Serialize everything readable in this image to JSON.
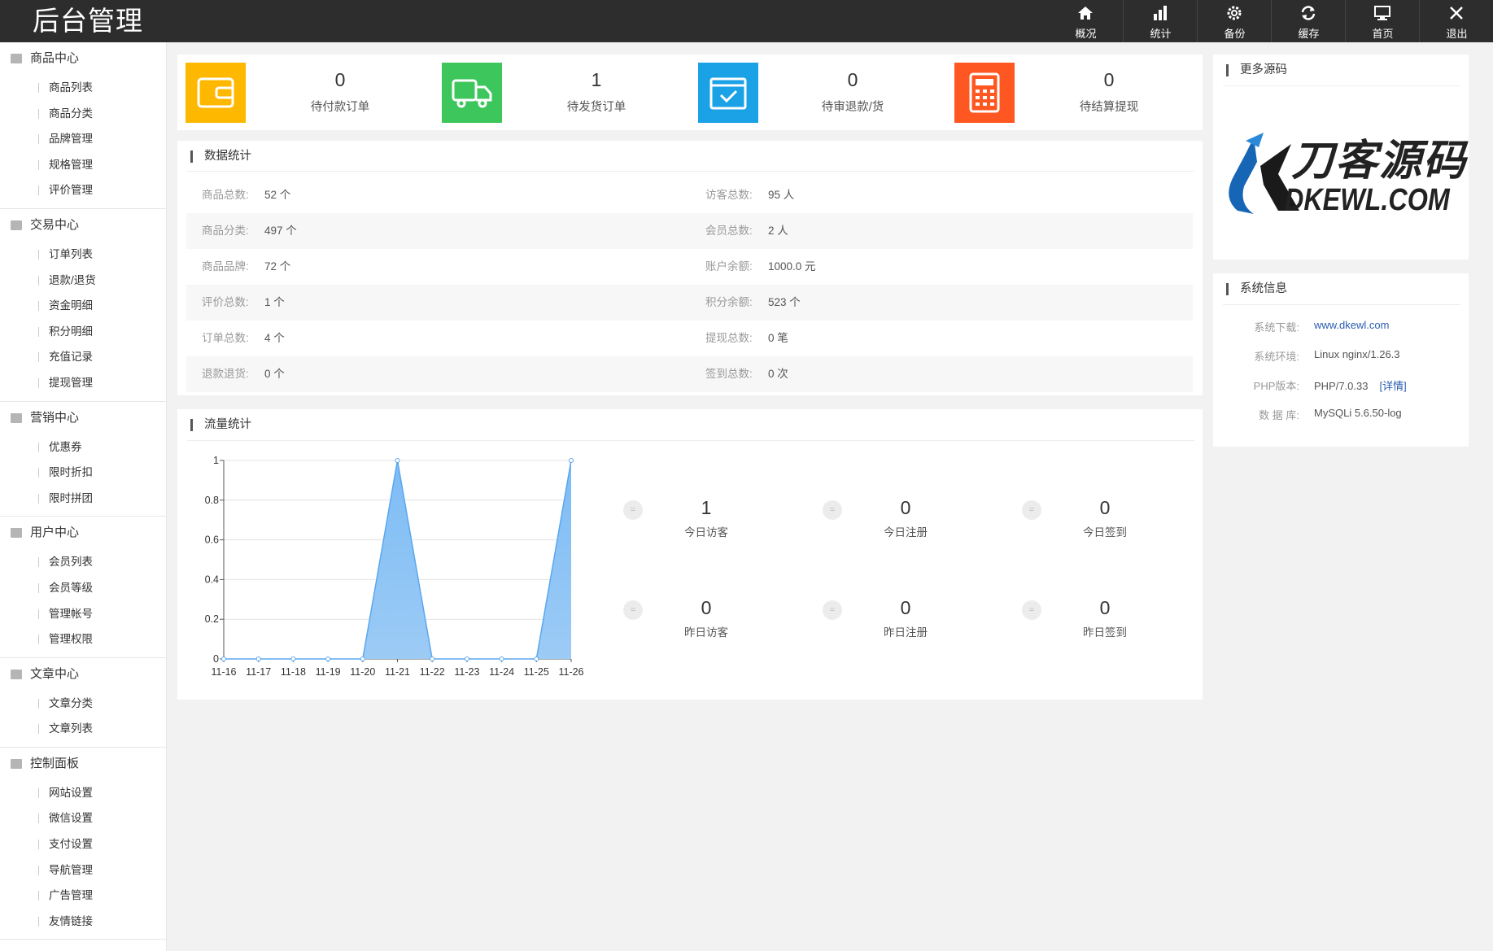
{
  "header": {
    "title": "后台管理",
    "nav": [
      "概况",
      "统计",
      "备份",
      "缓存",
      "首页",
      "退出"
    ]
  },
  "sidebar": [
    {
      "title": "商品中心",
      "items": [
        "商品列表",
        "商品分类",
        "品牌管理",
        "规格管理",
        "评价管理"
      ]
    },
    {
      "title": "交易中心",
      "items": [
        "订单列表",
        "退款/退货",
        "资金明细",
        "积分明细",
        "充值记录",
        "提现管理"
      ]
    },
    {
      "title": "营销中心",
      "items": [
        "优惠券",
        "限时折扣",
        "限时拼团"
      ]
    },
    {
      "title": "用户中心",
      "items": [
        "会员列表",
        "会员等级",
        "管理帐号",
        "管理权限"
      ]
    },
    {
      "title": "文章中心",
      "items": [
        "文章分类",
        "文章列表"
      ]
    },
    {
      "title": "控制面板",
      "items": [
        "网站设置",
        "微信设置",
        "支付设置",
        "导航管理",
        "广告管理",
        "友情链接"
      ]
    }
  ],
  "cards": [
    {
      "value": 0,
      "label": "待付款订单",
      "color": "#ffb800"
    },
    {
      "value": 1,
      "label": "待发货订单",
      "color": "#3cc65c"
    },
    {
      "value": 0,
      "label": "待审退款/货",
      "color": "#1aa1e6"
    },
    {
      "value": 0,
      "label": "待结算提现",
      "color": "#ff5722"
    }
  ],
  "data_stats": {
    "title": "数据统计",
    "rows": [
      [
        "商品总数:",
        "52 个",
        "访客总数:",
        "95 人"
      ],
      [
        "商品分类:",
        "497 个",
        "会员总数:",
        "2 人"
      ],
      [
        "商品品牌:",
        "72 个",
        "账户余额:",
        "1000.0 元"
      ],
      [
        "评价总数:",
        "1 个",
        "积分余额:",
        "523 个"
      ],
      [
        "订单总数:",
        "4 个",
        "提现总数:",
        "0 笔"
      ],
      [
        "退款退货:",
        "0 个",
        "签到总数:",
        "0 次"
      ]
    ]
  },
  "traffic": {
    "title": "流量统计",
    "stats": [
      {
        "value": 1,
        "label": "今日访客"
      },
      {
        "value": 0,
        "label": "今日注册"
      },
      {
        "value": 0,
        "label": "今日签到"
      },
      {
        "value": 0,
        "label": "昨日访客"
      },
      {
        "value": 0,
        "label": "昨日注册"
      },
      {
        "value": 0,
        "label": "昨日签到"
      }
    ]
  },
  "chart_data": {
    "type": "area",
    "categories": [
      "11-16",
      "11-17",
      "11-18",
      "11-19",
      "11-20",
      "11-21",
      "11-22",
      "11-23",
      "11-24",
      "11-25",
      "11-26"
    ],
    "values": [
      0,
      0,
      0,
      0,
      0,
      1,
      0,
      0,
      0,
      0,
      1
    ],
    "color": "#5aa7ee",
    "ylim": [
      0,
      1
    ],
    "yticks": [
      0,
      0.2,
      0.4,
      0.6,
      0.8,
      1
    ],
    "grid": true
  },
  "more": {
    "title": "更多源码",
    "logo_cn": "刀客源码",
    "logo_en": "DKEWL.COM"
  },
  "sysinfo": {
    "title": "系统信息",
    "rows": [
      [
        "系统下载:",
        "www.dkewl.com"
      ],
      [
        "系统环境:",
        "Linux nginx/1.26.3"
      ],
      [
        "PHP版本:",
        "PHP/7.0.33"
      ],
      [
        "数 据 库:",
        "MySQLi 5.6.50-log"
      ]
    ],
    "detail": "[详情]"
  }
}
